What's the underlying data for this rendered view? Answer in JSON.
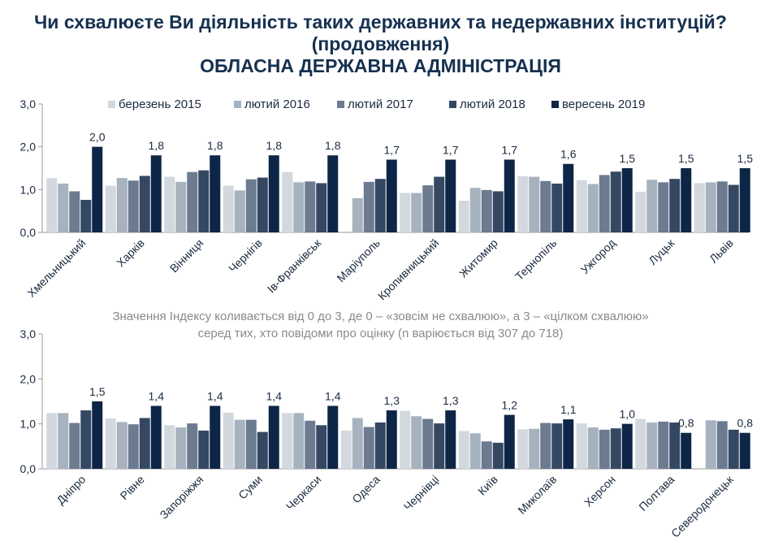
{
  "header": {
    "title_line1": "Чи схвалюєте Ви діяльність таких державних та недержавних інституцій?",
    "title_line2": "(продовження)",
    "title_line3": "ОБЛАСНА ДЕРЖАВНА АДМІНІСТРАЦІЯ"
  },
  "note": {
    "line1": "Значення Індексу коливається від 0 до 3, де 0 – «зовсім не схвалюю», а 3 – «цілком схвалюю»",
    "line2": "серед тих, хто повідоми про оцінку (n варіюється від 307 до 718)"
  },
  "colors": [
    "#d2d8de",
    "#a7b2bf",
    "#6c7b90",
    "#354863",
    "#0d2647"
  ],
  "chart_data": [
    {
      "type": "bar",
      "ylim": [
        0,
        3
      ],
      "yticks": [
        "0,0",
        "1,0",
        "2,0",
        "3,0"
      ],
      "legend_position": "top",
      "categories": [
        "Хмельницький",
        "Харків",
        "Вінниця",
        "Чернігів",
        "Ів-Франківськ",
        "Маріуполь",
        "Кропивницький",
        "Житомир",
        "Тернопіль",
        "Ужгород",
        "Луцьк",
        "Львів"
      ],
      "series": [
        {
          "name": "березень 2015",
          "values": [
            1.27,
            1.09,
            1.3,
            1.09,
            1.41,
            null,
            0.92,
            0.74,
            1.31,
            1.22,
            0.95,
            1.15
          ]
        },
        {
          "name": "лютий 2016",
          "values": [
            1.14,
            1.27,
            1.18,
            0.98,
            1.17,
            0.8,
            0.92,
            1.04,
            1.3,
            1.13,
            1.23,
            1.17
          ]
        },
        {
          "name": "лютий 2017",
          "values": [
            0.96,
            1.21,
            1.41,
            1.24,
            1.19,
            1.18,
            1.1,
            0.99,
            1.2,
            1.34,
            1.17,
            1.19
          ]
        },
        {
          "name": "лютий 2018",
          "values": [
            0.76,
            1.32,
            1.45,
            1.28,
            1.15,
            1.25,
            1.3,
            0.96,
            1.14,
            1.42,
            1.25,
            1.11
          ]
        },
        {
          "name": "вересень 2019",
          "values": [
            2.0,
            1.8,
            1.8,
            1.8,
            1.8,
            1.7,
            1.7,
            1.7,
            1.6,
            1.5,
            1.5,
            1.5
          ]
        }
      ],
      "data_labels": [
        "2,0",
        "1,8",
        "1,8",
        "1,8",
        "1,8",
        "1,7",
        "1,7",
        "1,7",
        "1,6",
        "1,5",
        "1,5",
        "1,5"
      ]
    },
    {
      "type": "bar",
      "ylim": [
        0,
        3
      ],
      "yticks": [
        "0,0",
        "1,0",
        "2,0",
        "3,0"
      ],
      "categories": [
        "Дніпро",
        "Рівне",
        "Запоріжжя",
        "Суми",
        "Черкаси",
        "Одеса",
        "Чернівці",
        "Київ",
        "Миколаїв",
        "Херсон",
        "Полтава",
        "Северодонецьк"
      ],
      "series": [
        {
          "name": "березень 2015",
          "values": [
            1.24,
            1.12,
            0.97,
            1.25,
            1.24,
            0.85,
            1.29,
            0.84,
            0.88,
            1.01,
            1.11,
            null
          ]
        },
        {
          "name": "лютий 2016",
          "values": [
            1.24,
            1.04,
            0.92,
            1.09,
            1.24,
            1.13,
            1.17,
            0.79,
            0.89,
            0.92,
            1.03,
            1.08
          ]
        },
        {
          "name": "лютий 2017",
          "values": [
            1.02,
            0.99,
            1.01,
            1.09,
            1.07,
            0.93,
            1.11,
            0.61,
            1.02,
            0.87,
            1.05,
            1.06
          ]
        },
        {
          "name": "лютий 2018",
          "values": [
            1.3,
            1.13,
            0.85,
            0.82,
            0.97,
            1.03,
            1.01,
            0.58,
            1.01,
            0.9,
            1.03,
            0.87
          ]
        },
        {
          "name": "вересень 2019",
          "values": [
            1.5,
            1.4,
            1.4,
            1.4,
            1.4,
            1.3,
            1.3,
            1.2,
            1.1,
            1.0,
            0.8,
            0.8
          ]
        }
      ],
      "data_labels": [
        "1,5",
        "1,4",
        "1,4",
        "1,4",
        "1,4",
        "1,3",
        "1,3",
        "1,2",
        "1,1",
        "1,0",
        "0,8",
        "0,8"
      ]
    }
  ]
}
